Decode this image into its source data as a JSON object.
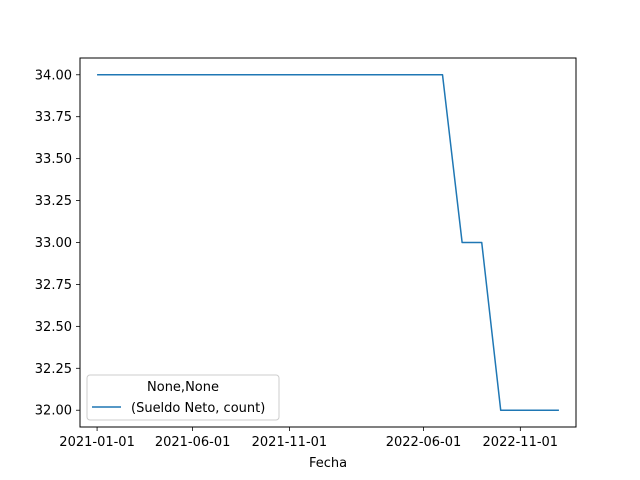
{
  "chart_data": {
    "type": "line",
    "xlabel": "Fecha",
    "ylabel": "",
    "x": [
      "2021-01-01",
      "2021-02-01",
      "2021-03-01",
      "2021-04-01",
      "2021-05-01",
      "2021-06-01",
      "2021-07-01",
      "2021-08-01",
      "2021-09-01",
      "2021-10-01",
      "2021-11-01",
      "2021-12-01",
      "2022-01-01",
      "2022-02-01",
      "2022-03-01",
      "2022-04-01",
      "2022-05-01",
      "2022-06-01",
      "2022-07-01",
      "2022-08-01",
      "2022-09-01",
      "2022-10-01",
      "2022-11-01",
      "2022-12-01",
      "2023-01-01"
    ],
    "series": [
      {
        "name": "(Sueldo Neto, count)",
        "color": "#1f77b4",
        "values": [
          34,
          34,
          34,
          34,
          34,
          34,
          34,
          34,
          34,
          34,
          34,
          34,
          34,
          34,
          34,
          34,
          34,
          34,
          34,
          33,
          33,
          32,
          32,
          32,
          32
        ]
      }
    ],
    "ylim": [
      31.9,
      34.1
    ],
    "xlim": [
      "2020-12-05",
      "2023-01-28"
    ],
    "yticks": [
      32.0,
      32.25,
      32.5,
      32.75,
      33.0,
      33.25,
      33.5,
      33.75,
      34.0
    ],
    "ytick_labels": [
      "32.00",
      "32.25",
      "32.50",
      "32.75",
      "33.00",
      "33.25",
      "33.50",
      "33.75",
      "34.00"
    ],
    "xticks": [
      "2021-01-01",
      "2021-06-01",
      "2021-11-01",
      "2022-06-01",
      "2022-11-01"
    ],
    "xtick_labels": [
      "2021-01-01",
      "2021-06-01",
      "2021-11-01",
      "2022-06-01",
      "2022-11-01"
    ],
    "legend": {
      "title": "None,None",
      "placement": "lower-left"
    },
    "grid": false
  }
}
